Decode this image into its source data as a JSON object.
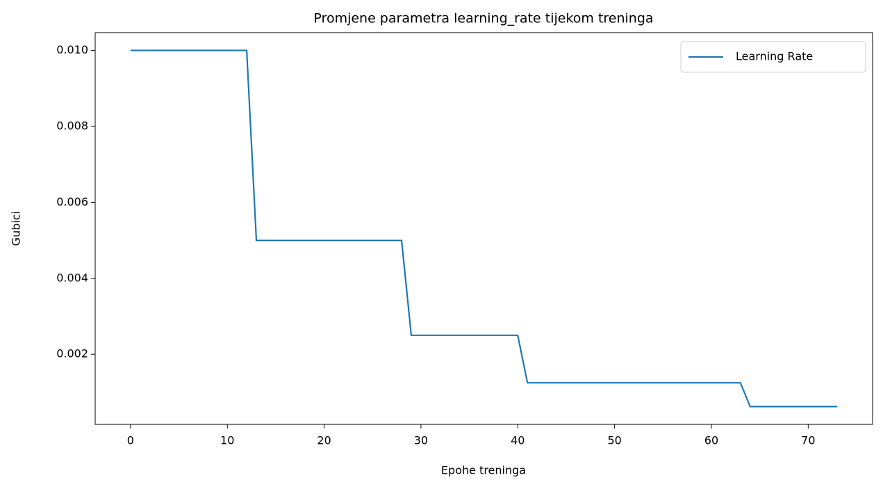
{
  "chart_data": {
    "type": "line",
    "title": "Promjene parametra learning_rate tijekom treninga",
    "xlabel": "Epohe treninga",
    "ylabel": "Gubici",
    "x": [
      0,
      1,
      2,
      3,
      4,
      5,
      6,
      7,
      8,
      9,
      10,
      11,
      12,
      13,
      14,
      15,
      16,
      17,
      18,
      19,
      20,
      21,
      22,
      23,
      24,
      25,
      26,
      27,
      28,
      29,
      30,
      31,
      32,
      33,
      34,
      35,
      36,
      37,
      38,
      39,
      40,
      41,
      42,
      43,
      44,
      45,
      46,
      47,
      48,
      49,
      50,
      51,
      52,
      53,
      54,
      55,
      56,
      57,
      58,
      59,
      60,
      61,
      62,
      63,
      64,
      65,
      66,
      67,
      68,
      69,
      70,
      71,
      72,
      73
    ],
    "series": [
      {
        "name": "Learning Rate",
        "color": "#1f77b4",
        "values": [
          0.01,
          0.01,
          0.01,
          0.01,
          0.01,
          0.01,
          0.01,
          0.01,
          0.01,
          0.01,
          0.01,
          0.01,
          0.01,
          0.005,
          0.005,
          0.005,
          0.005,
          0.005,
          0.005,
          0.005,
          0.005,
          0.005,
          0.005,
          0.005,
          0.005,
          0.005,
          0.005,
          0.005,
          0.005,
          0.0025,
          0.0025,
          0.0025,
          0.0025,
          0.0025,
          0.0025,
          0.0025,
          0.0025,
          0.0025,
          0.0025,
          0.0025,
          0.0025,
          0.00125,
          0.00125,
          0.00125,
          0.00125,
          0.00125,
          0.00125,
          0.00125,
          0.00125,
          0.00125,
          0.00125,
          0.00125,
          0.00125,
          0.00125,
          0.00125,
          0.00125,
          0.00125,
          0.00125,
          0.00125,
          0.00125,
          0.00125,
          0.00125,
          0.00125,
          0.00125,
          0.000625,
          0.000625,
          0.000625,
          0.000625,
          0.000625,
          0.000625,
          0.000625,
          0.000625,
          0.000625,
          0.000625
        ]
      }
    ],
    "xlim": [
      -3.65,
      76.65
    ],
    "xticks": [
      0,
      10,
      20,
      30,
      40,
      50,
      60,
      70
    ],
    "ylim": [
      0.00015625,
      0.01046875
    ],
    "yticks": [
      0.002,
      0.004,
      0.006,
      0.008,
      {
        "value": 0.01,
        "label": "0.010"
      }
    ],
    "legend": "upper right",
    "grid": false
  }
}
